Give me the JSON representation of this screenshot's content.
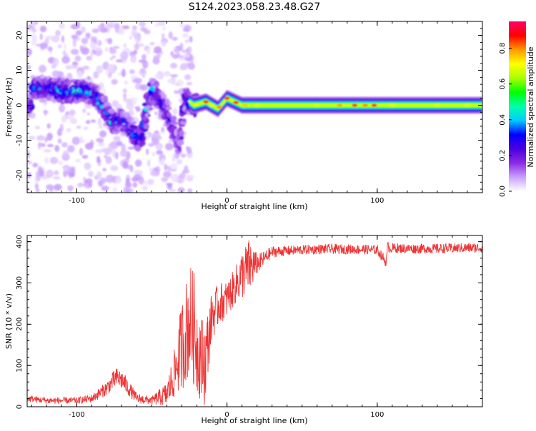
{
  "title": "S124.2023.058.23.48.G27",
  "chart_data": [
    {
      "type": "heatmap",
      "xlabel": "Height of straight line (km)",
      "ylabel": "Frequency (Hz)",
      "xlim": [
        -133,
        170
      ],
      "ylim": [
        -25,
        24
      ],
      "xticks": [
        -100,
        0,
        100
      ],
      "yticks": [
        -20,
        -10,
        0,
        10,
        20
      ],
      "colorbar": {
        "label": "Normalized spectral amplitude",
        "range": [
          0,
          0.95
        ],
        "ticks": [
          "0.0",
          "0.2",
          "0.4",
          "0.6",
          "0.8"
        ],
        "colormap": [
          "#ffffff",
          "#c9a0ff",
          "#8a2be2",
          "#4b00e0",
          "#0000ff",
          "#00ccff",
          "#00ffaa",
          "#00ff00",
          "#aaff00",
          "#ffff00",
          "#ff9900",
          "#ff0000",
          "#ff0066"
        ]
      },
      "ridge": [
        {
          "x": -130,
          "y": 5,
          "a": 0.35
        },
        {
          "x": -120,
          "y": 5,
          "a": 0.4
        },
        {
          "x": -110,
          "y": 4,
          "a": 0.45
        },
        {
          "x": -100,
          "y": 4,
          "a": 0.5
        },
        {
          "x": -92,
          "y": 4,
          "a": 0.45
        },
        {
          "x": -86,
          "y": 2,
          "a": 0.4
        },
        {
          "x": -80,
          "y": -2,
          "a": 0.4
        },
        {
          "x": -76,
          "y": -5,
          "a": 0.45
        },
        {
          "x": -70,
          "y": -4,
          "a": 0.35
        },
        {
          "x": -64,
          "y": -7,
          "a": 0.35
        },
        {
          "x": -58,
          "y": -10,
          "a": 0.4
        },
        {
          "x": -50,
          "y": 5,
          "a": 0.45
        },
        {
          "x": -44,
          "y": 1,
          "a": 0.35
        },
        {
          "x": -38,
          "y": -4,
          "a": 0.3
        },
        {
          "x": -32,
          "y": -12,
          "a": 0.25
        },
        {
          "x": -28,
          "y": 2,
          "a": 0.35
        },
        {
          "x": -22,
          "y": 0,
          "a": 0.6
        },
        {
          "x": -14,
          "y": 1,
          "a": 0.75
        },
        {
          "x": -6,
          "y": -1,
          "a": 0.7
        },
        {
          "x": 0,
          "y": 2,
          "a": 0.8
        },
        {
          "x": 10,
          "y": 0,
          "a": 0.7
        },
        {
          "x": 30,
          "y": 0,
          "a": 0.55
        },
        {
          "x": 60,
          "y": 0,
          "a": 0.55
        },
        {
          "x": 85,
          "y": 0,
          "a": 0.75
        },
        {
          "x": 98,
          "y": 0,
          "a": 0.75
        },
        {
          "x": 130,
          "y": 0,
          "a": 0.55
        },
        {
          "x": 170,
          "y": 0,
          "a": 0.55
        }
      ]
    },
    {
      "type": "line",
      "xlabel": "Height of straight line (km)",
      "ylabel": "SNR (10 * v/v)",
      "xlim": [
        -133,
        170
      ],
      "ylim": [
        0,
        415
      ],
      "xticks": [
        -100,
        0,
        100
      ],
      "yticks": [
        0,
        100,
        200,
        300,
        400
      ],
      "series": [
        {
          "color": "#ee3333",
          "x": [
            -133,
            -120,
            -100,
            -90,
            -80,
            -74,
            -70,
            -60,
            -50,
            -40,
            -35,
            -30,
            -25,
            -22,
            -20,
            -15,
            -10,
            -5,
            0,
            5,
            10,
            15,
            20,
            25,
            30,
            40,
            50,
            60,
            80,
            100,
            106,
            107,
            108,
            120,
            140,
            160,
            170
          ],
          "y": [
            20,
            15,
            15,
            20,
            45,
            70,
            65,
            20,
            15,
            30,
            80,
            150,
            210,
            190,
            150,
            100,
            220,
            250,
            260,
            290,
            320,
            340,
            345,
            360,
            375,
            378,
            380,
            382,
            382,
            380,
            350,
            390,
            385,
            383,
            383,
            385,
            385
          ],
          "noise": [
            8,
            8,
            8,
            10,
            18,
            25,
            25,
            12,
            10,
            30,
            60,
            110,
            140,
            140,
            120,
            100,
            60,
            50,
            45,
            45,
            60,
            70,
            25,
            18,
            14,
            12,
            12,
            12,
            12,
            12,
            12,
            12,
            12,
            12,
            12,
            12,
            12
          ]
        }
      ]
    }
  ]
}
